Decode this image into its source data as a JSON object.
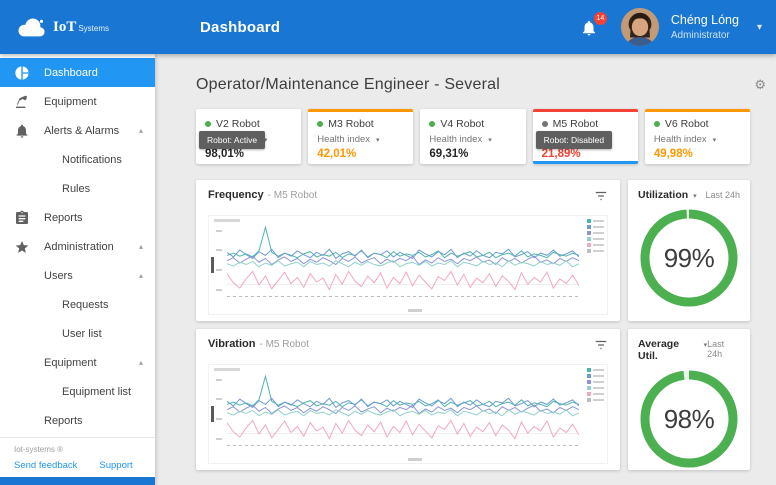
{
  "topbar": {
    "logo": {
      "brand": "IoT",
      "brand_suffix": "Systems"
    },
    "title": "Dashboard",
    "notifications_count": "14",
    "user": {
      "name": "Chéng Lóng",
      "role": "Administrator"
    }
  },
  "sidebar": {
    "items": [
      {
        "label": "Dashboard",
        "icon": "pie-chart",
        "level": 0,
        "active": true
      },
      {
        "label": "Equipment",
        "icon": "robot-arm",
        "level": 0
      },
      {
        "label": "Alerts & Alarms",
        "icon": "bell",
        "level": 0,
        "expanded": true
      },
      {
        "label": "Notifications",
        "level": 2
      },
      {
        "label": "Rules",
        "level": 2
      },
      {
        "label": "Reports",
        "icon": "clipboard",
        "level": 0
      },
      {
        "label": "Administration",
        "icon": "star",
        "level": 0,
        "expanded": true
      },
      {
        "label": "Users",
        "level": 1,
        "expanded": true
      },
      {
        "label": "Requests",
        "level": 2
      },
      {
        "label": "User list",
        "level": 2
      },
      {
        "label": "Equipment",
        "level": 1,
        "expanded": true
      },
      {
        "label": "Equipment list",
        "level": 2
      },
      {
        "label": "Reports",
        "level": 1
      }
    ],
    "footer": {
      "copyright": "Iot-systems ®",
      "feedback": "Send feedback",
      "support": "Support"
    }
  },
  "main": {
    "heading": "Operator/Maintenance Engineer  - Several",
    "robot_cards": [
      {
        "name": "V2 Robot",
        "metric": "Health index",
        "value": "98,01%",
        "value_color": "#262626",
        "dot_color": "#4caf50",
        "accent_color": null,
        "tooltip": "Robot: Active",
        "selected": false
      },
      {
        "name": "M3 Robot",
        "metric": "Health index",
        "value": "42,01%",
        "value_color": "#ff9800",
        "dot_color": "#4caf50",
        "accent_color": "#ff9800",
        "tooltip": null,
        "selected": false
      },
      {
        "name": "V4 Robot",
        "metric": "Health index",
        "value": "69,31%",
        "value_color": "#262626",
        "dot_color": "#4caf50",
        "accent_color": null,
        "tooltip": null,
        "selected": false
      },
      {
        "name": "M5 Robot",
        "metric": "Health index",
        "value": "21,89%",
        "value_color": "#f44336",
        "dot_color": "#757575",
        "accent_color": "#f44336",
        "tooltip": "Robot: Disabled",
        "selected": true
      },
      {
        "name": "V6 Robot",
        "metric": "Health index",
        "value": "49,98%",
        "value_color": "#ff9800",
        "dot_color": "#4caf50",
        "accent_color": "#ff9800",
        "tooltip": null,
        "selected": false
      }
    ],
    "charts": [
      {
        "title": "Frequency",
        "subtitle": "- M5 Robot"
      },
      {
        "title": "Vibration",
        "subtitle": "- M5 Robot"
      }
    ],
    "gauges": [
      {
        "title": "Utilization",
        "period": "Last 24h",
        "value": "99%",
        "percent": 99,
        "color": "#4caf50"
      },
      {
        "title": "Average Util.",
        "period": "Last 24h",
        "value": "98%",
        "percent": 98,
        "color": "#4caf50"
      }
    ]
  },
  "chart_data": {
    "type": "line",
    "charts": [
      "Frequency - M5 Robot",
      "Vibration - M5 Robot"
    ],
    "ylim": [
      0,
      100
    ],
    "axes_labels_legible": false,
    "legend_position": "top-right",
    "series": [
      {
        "name": "series-teal",
        "color": "#4db6ac",
        "values": [
          60,
          63,
          59,
          62,
          58,
          66,
          97,
          64,
          59,
          63,
          60,
          57,
          62,
          65,
          58,
          61,
          59,
          64,
          57,
          62,
          60,
          66,
          58,
          63,
          61,
          57,
          65,
          59,
          62,
          60,
          64,
          58,
          61,
          66,
          57,
          63,
          59,
          62,
          65,
          58,
          60,
          64,
          57,
          61,
          63,
          59,
          66,
          58,
          62,
          60,
          57,
          64,
          61,
          59,
          63,
          60
        ]
      },
      {
        "name": "series-blue",
        "color": "#6c9bd2",
        "values": [
          64,
          58,
          67,
          61,
          56,
          65,
          60,
          68,
          57,
          63,
          59,
          66,
          61,
          57,
          64,
          60,
          68,
          56,
          62,
          65,
          59,
          67,
          57,
          63,
          61,
          66,
          58,
          64,
          60,
          56,
          67,
          62,
          58,
          65,
          61,
          68,
          57,
          63,
          59,
          66,
          60,
          57,
          64,
          62,
          68,
          58,
          61,
          65,
          57,
          63,
          60,
          67,
          59,
          62,
          66,
          58
        ]
      },
      {
        "name": "series-indigo",
        "color": "#8b95d6",
        "values": [
          53,
          57,
          50,
          55,
          59,
          51,
          56,
          48,
          54,
          58,
          52,
          56,
          49,
          55,
          51,
          57,
          53,
          48,
          56,
          52,
          58,
          50,
          54,
          57,
          49,
          55,
          51,
          56,
          53,
          59,
          48,
          54,
          50,
          57,
          52,
          55,
          49,
          56,
          53,
          58,
          51,
          54,
          48,
          57,
          52,
          56,
          50,
          55,
          59,
          51,
          54,
          49,
          56,
          52,
          57,
          53
        ]
      },
      {
        "name": "series-light-teal",
        "color": "#8fd3cc",
        "values": [
          49,
          46,
          51,
          48,
          52,
          45,
          50,
          47,
          53,
          46,
          49,
          51,
          45,
          52,
          48,
          50,
          46,
          53,
          49,
          45,
          51,
          47,
          52,
          48,
          46,
          50,
          53,
          45,
          49,
          51,
          47,
          52,
          46,
          50,
          48,
          53,
          45,
          51,
          49,
          46,
          52,
          48,
          50,
          45,
          53,
          47,
          51,
          49,
          46,
          52,
          48,
          50,
          47,
          53,
          45,
          49
        ]
      },
      {
        "name": "series-pink",
        "color": "#f2a7c3",
        "values": [
          36,
          24,
          17,
          29,
          39,
          21,
          33,
          16,
          27,
          38,
          23,
          31,
          18,
          36,
          25,
          30,
          15,
          35,
          22,
          39,
          26,
          19,
          33,
          24,
          37,
          17,
          31,
          23,
          38,
          20,
          34,
          25,
          16,
          32,
          27,
          39,
          21,
          35,
          18,
          30,
          24,
          36,
          19,
          33,
          26,
          15,
          37,
          22,
          31,
          25,
          38,
          17,
          29,
          23,
          34,
          20
        ]
      },
      {
        "name": "series-baseline",
        "color": "#bdbdbd",
        "dashed": true,
        "values": [
          6,
          6
        ]
      }
    ]
  }
}
